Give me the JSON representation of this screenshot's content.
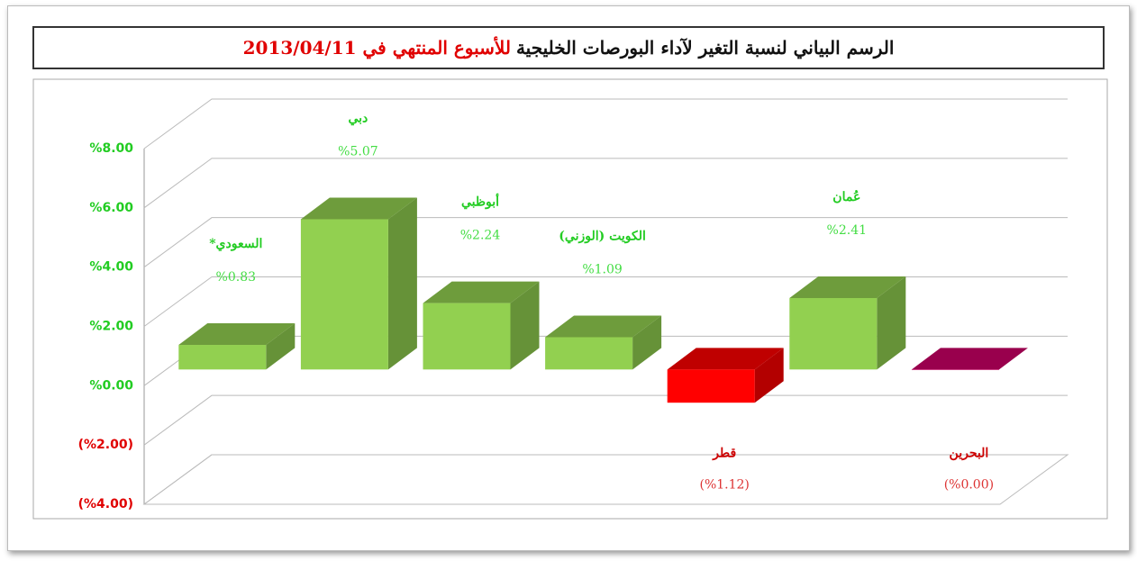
{
  "chart_data": {
    "type": "bar",
    "title": "الرسم البياني لنسبة التغير لآداء البورصات الخليجية",
    "title_date": "للأسبوع المنتهي في 2013/04/11",
    "categories": [
      "السعودي*",
      "دبي",
      "أبوظبي",
      "الكويت (الوزني)",
      "قطر",
      "عُمان",
      "البحرين"
    ],
    "values": [
      0.83,
      5.07,
      2.24,
      1.09,
      -1.12,
      2.41,
      0.0
    ],
    "value_labels": [
      "%0.83",
      "%5.07",
      "%2.24",
      "%1.09",
      "(%1.12)",
      "%2.41",
      "(%0.00)"
    ],
    "colors": [
      "#92d050",
      "#92d050",
      "#92d050",
      "#92d050",
      "#ff0000",
      "#92d050",
      "#cc0066"
    ],
    "ylim": [
      -4,
      8
    ],
    "yticks": [
      {
        "value": -4,
        "label": "(%4.00)"
      },
      {
        "value": -2,
        "label": "(%2.00)"
      },
      {
        "value": 0,
        "label": "%0.00"
      },
      {
        "value": 2,
        "label": "%2.00"
      },
      {
        "value": 4,
        "label": "%4.00"
      },
      {
        "value": 6,
        "label": "%6.00"
      },
      {
        "value": 8,
        "label": "%8.00"
      }
    ],
    "grid": true
  }
}
